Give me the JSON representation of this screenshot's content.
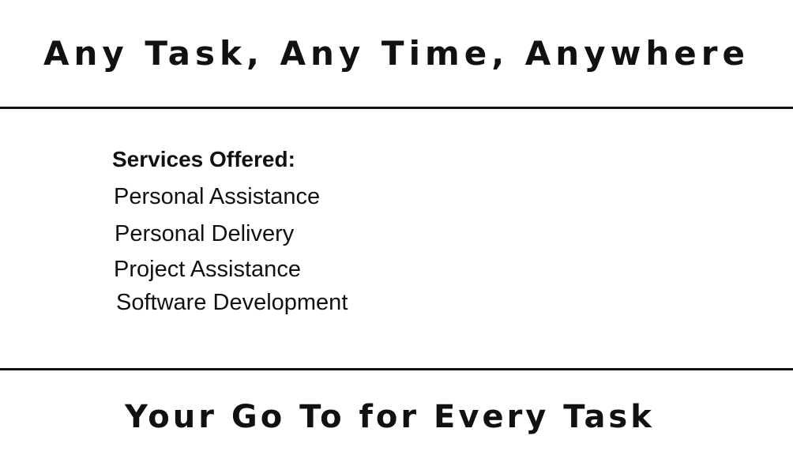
{
  "header": {
    "headline": "Any Task, Any Time, Anywhere"
  },
  "services": {
    "title": "Services Offered:",
    "items": [
      "Personal Assistance",
      "Personal Delivery",
      "Project Assistance",
      "Software Development"
    ]
  },
  "footer": {
    "tagline": "Your Go To for Every Task"
  },
  "colors": {
    "text": "#111111",
    "background": "#ffffff",
    "divider": "#111111"
  }
}
